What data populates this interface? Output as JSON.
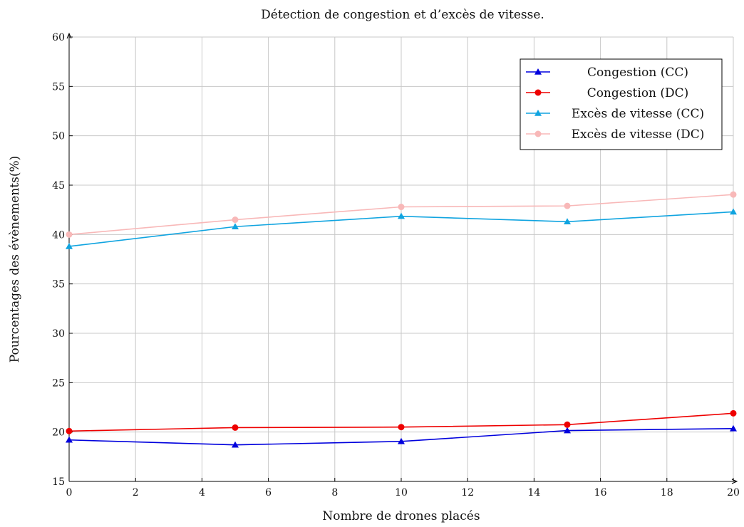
{
  "chart_data": {
    "type": "line",
    "title": "Détection de congestion et d’excès de vitesse.",
    "xlabel": "Nombre de drones placés",
    "ylabel": "Pourcentages des évènements(%)",
    "xlim": [
      0,
      20
    ],
    "ylim": [
      15,
      60
    ],
    "xticks": [
      0,
      2,
      4,
      6,
      8,
      10,
      12,
      14,
      16,
      18,
      20
    ],
    "yticks": [
      15,
      20,
      25,
      30,
      35,
      40,
      45,
      50,
      55,
      60
    ],
    "grid": true,
    "legend_position": "top-right",
    "x": [
      0,
      5,
      10,
      15,
      20
    ],
    "series": [
      {
        "name": "Congestion (CC)",
        "color": "#0000dd",
        "marker": "triangle",
        "values": [
          19.2,
          18.7,
          19.05,
          20.15,
          20.35
        ]
      },
      {
        "name": "Congestion (DC)",
        "color": "#ee0000",
        "marker": "circle",
        "values": [
          20.1,
          20.45,
          20.5,
          20.75,
          21.9
        ]
      },
      {
        "name": "Excès de vitesse (CC)",
        "color": "#10a4e0",
        "marker": "triangle",
        "values": [
          38.8,
          40.8,
          41.85,
          41.3,
          42.3
        ]
      },
      {
        "name": "Excès de vitesse (DC)",
        "color": "#f8b8b8",
        "marker": "circle",
        "values": [
          40.0,
          41.5,
          42.8,
          42.9,
          44.05
        ]
      }
    ]
  }
}
